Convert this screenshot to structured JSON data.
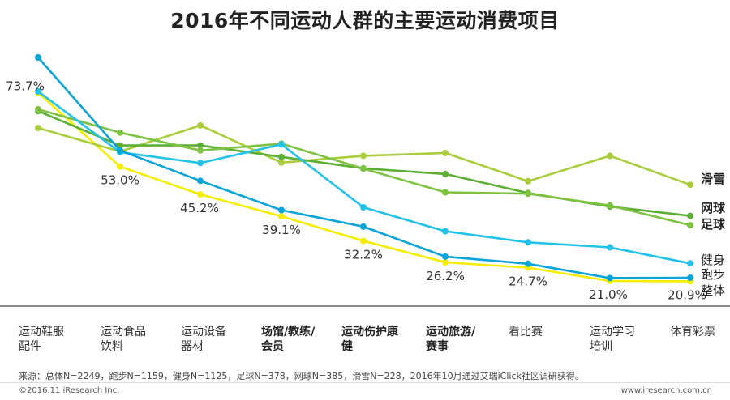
{
  "title": "2016年不同运动人群的主要运动消费项目",
  "chart_data": {
    "type": "line",
    "title": "2016年不同运动人群的主要运动消费项目",
    "categories": [
      "运动鞋服配件",
      "运动食品饮料",
      "运动设备器材",
      "场馆/教练/会员",
      "运动伤护康健",
      "运动旅游/赛事",
      "看比赛",
      "运动学习培训",
      "体育彩票"
    ],
    "category_labels": [
      "运动鞋服\n配件",
      "运动食品\n饮料",
      "运动设备\n器材",
      "场馆/教练/\n会员",
      "运动伤护康\n健",
      "运动旅游/\n赛事",
      "看比赛",
      "运动学习\n培训",
      "体育彩票"
    ],
    "bold_categories": [
      3,
      4,
      5
    ],
    "ylim": [
      10,
      85
    ],
    "series": [
      {
        "name": "整体",
        "color": "#f5ee00",
        "values": [
          73.7,
          53.0,
          45.2,
          39.1,
          32.2,
          26.2,
          24.7,
          21.0,
          20.9
        ],
        "data_labels": [
          "73.7%",
          "53.0%",
          "45.2%",
          "39.1%",
          "32.2%",
          "26.2%",
          "24.7%",
          "21.0%",
          "20.9%"
        ]
      },
      {
        "name": "跑步",
        "color": "#0aa4d8",
        "values": [
          83.5,
          57.5,
          49.0,
          40.8,
          36.2,
          27.8,
          25.8,
          21.8,
          21.9
        ]
      },
      {
        "name": "健身",
        "color": "#23c2e8",
        "values": [
          74.0,
          57.0,
          54.0,
          59.2,
          41.6,
          34.9,
          31.8,
          30.4,
          25.9
        ]
      },
      {
        "name": "足球",
        "color": "#7ec242",
        "values": [
          69.0,
          62.5,
          57.5,
          59.4,
          52.4,
          45.8,
          45.4,
          42.1,
          36.6
        ]
      },
      {
        "name": "网球",
        "color": "#5cae34",
        "values": [
          68.5,
          58.9,
          58.9,
          55.7,
          52.5,
          50.9,
          45.6,
          41.8,
          39.2
        ]
      },
      {
        "name": "滑雪",
        "color": "#a9cd3c",
        "values": [
          63.8,
          57.2,
          64.5,
          54.1,
          56.0,
          56.8,
          48.9,
          56.0,
          47.9
        ]
      }
    ]
  },
  "source": "来源：总体N=2249，跑步N=1159，健身N=1125，足球N=378，网球N=385，滑雪N=228，2016年10月通过艾瑞iClick社区调研获得。",
  "copyright": "©2016.11 iResearch Inc.",
  "website": "www.iresearch.com.cn"
}
